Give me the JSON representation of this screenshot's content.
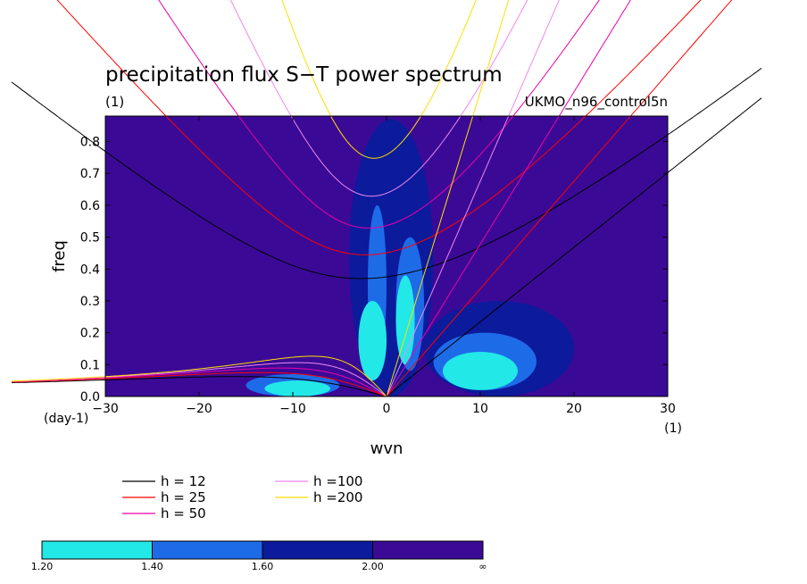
{
  "chart_data": {
    "type": "heatmap",
    "title": "precipitation flux S−T power spectrum",
    "units_label": "(1)",
    "dataset": "UKMO_n96_control5n",
    "xlabel": "wvn",
    "ylabel": "freq",
    "x_units": "(1)",
    "y_units": "(day-1)",
    "xlim": [
      -30,
      30
    ],
    "ylim": [
      0,
      0.88
    ],
    "x_ticks": [
      "−30",
      "−20",
      "−10",
      "0",
      "10",
      "20",
      "30"
    ],
    "y_ticks": [
      "0.0",
      "0.1",
      "0.2",
      "0.3",
      "0.4",
      "0.5",
      "0.6",
      "0.7",
      "0.8"
    ],
    "x_tick_values": [
      -30,
      -20,
      -10,
      0,
      10,
      20,
      30
    ],
    "y_tick_values": [
      0,
      0.1,
      0.2,
      0.3,
      0.4,
      0.5,
      0.6,
      0.7,
      0.8
    ],
    "background_level": "2.00-∞",
    "contour_levels": [
      1.2,
      1.4,
      1.6,
      2.0
    ],
    "colorbar": {
      "labels": [
        "1.20",
        "1.40",
        "1.60",
        "2.00",
        "∞"
      ],
      "colors": [
        "#22e8e8",
        "#1e6be8",
        "#0c1a9c",
        "#3a0a96"
      ]
    },
    "power_regions": [
      {
        "x": [
          -13,
          -6
        ],
        "y": [
          0.0,
          0.05
        ],
        "level": 1.2
      },
      {
        "x": [
          -3,
          0
        ],
        "y": [
          0.05,
          0.3
        ],
        "level": 1.2
      },
      {
        "x": [
          1,
          3
        ],
        "y": [
          0.1,
          0.38
        ],
        "level": 1.2
      },
      {
        "x": [
          6,
          14
        ],
        "y": [
          0.02,
          0.14
        ],
        "level": 1.2
      },
      {
        "x": [
          -2,
          0
        ],
        "y": [
          0.1,
          0.6
        ],
        "level": 1.4
      },
      {
        "x": [
          1,
          4
        ],
        "y": [
          0.08,
          0.5
        ],
        "level": 1.4
      },
      {
        "x": [
          5,
          16
        ],
        "y": [
          0.02,
          0.2
        ],
        "level": 1.4
      },
      {
        "x": [
          -15,
          -5
        ],
        "y": [
          0.0,
          0.07
        ],
        "level": 1.4
      },
      {
        "x": [
          -4,
          5
        ],
        "y": [
          0.0,
          0.87
        ],
        "level": 1.6
      },
      {
        "x": [
          4,
          20
        ],
        "y": [
          0.0,
          0.3
        ],
        "level": 1.6
      }
    ],
    "dispersion_curves": [
      {
        "name": "h = 12",
        "equivalent_depth": 12,
        "color": "#000000"
      },
      {
        "name": "h = 25",
        "equivalent_depth": 25,
        "color": "#ff0000"
      },
      {
        "name": "h = 50",
        "equivalent_depth": 50,
        "color": "#ee00aa"
      },
      {
        "name": "h =100",
        "equivalent_depth": 100,
        "color": "#ee88ee"
      },
      {
        "name": "h =200",
        "equivalent_depth": 200,
        "color": "#ffdd00"
      }
    ],
    "grid": false,
    "legend_placement": "below-left"
  }
}
